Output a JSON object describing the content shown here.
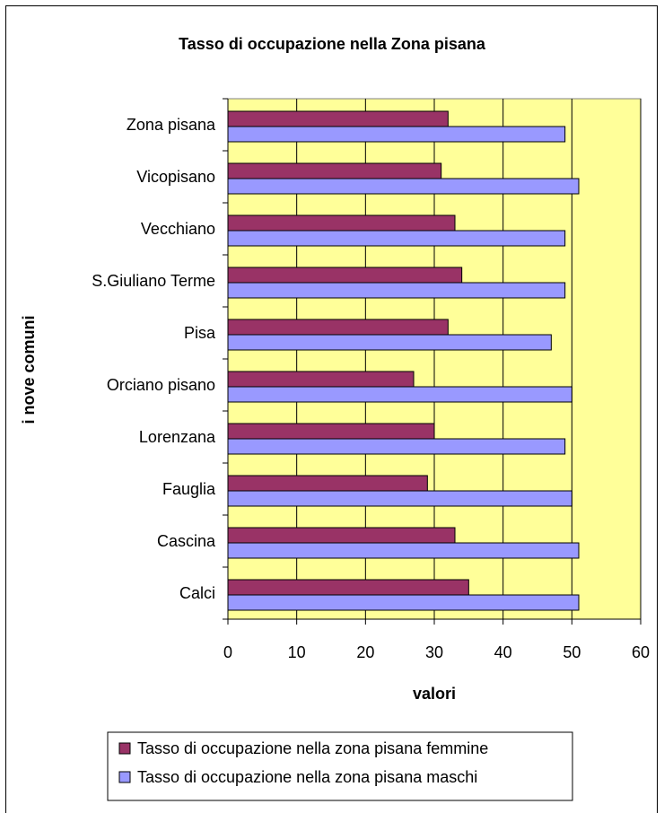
{
  "chart_data": {
    "type": "bar",
    "orientation": "horizontal",
    "title": "Tasso di occupazione nella Zona pisana",
    "xlabel": "valori",
    "ylabel": "i nove comuni",
    "xlim": [
      0,
      60
    ],
    "x_ticks": [
      "0",
      "10",
      "20",
      "30",
      "40",
      "50",
      "60"
    ],
    "grid": true,
    "legend_position": "bottom",
    "plot_background": "#ffff99",
    "categories": [
      "Zona pisana",
      "Vicopisano",
      "Vecchiano",
      "S.Giuliano Terme",
      "Pisa",
      "Orciano pisano",
      "Lorenzana",
      "Fauglia",
      "Cascina",
      "Calci"
    ],
    "series": [
      {
        "name": "Tasso di occupazione nella zona pisana femmine",
        "color": "#993366",
        "values": [
          32,
          31,
          33,
          34,
          32,
          27,
          30,
          29,
          33,
          35
        ]
      },
      {
        "name": "Tasso di occupazione nella zona pisana maschi",
        "color": "#9999ff",
        "values": [
          49,
          51,
          49,
          49,
          47,
          50,
          49,
          50,
          51,
          51
        ]
      }
    ]
  }
}
